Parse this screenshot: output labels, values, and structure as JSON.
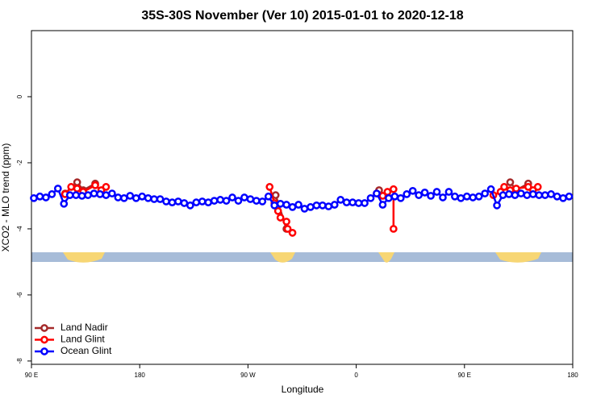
{
  "chart_data": {
    "type": "line",
    "title": "35S-30S November (Ver 10)   2015-01-01 to 2020-12-18",
    "x_label": "Longitude",
    "y_label": "XCO2 - MLO trend (ppm)",
    "xlim": [
      90,
      540
    ],
    "ylim": [
      -8.1,
      2
    ],
    "xticks": [
      {
        "value": 90,
        "label": "90 E"
      },
      180,
      {
        "value": 270,
        "label": "90 W"
      },
      {
        "value": 360,
        "label": "0"
      },
      {
        "value": 450,
        "label": "90 E"
      },
      {
        "value": 540,
        "label": "180"
      }
    ],
    "yticks": [
      -8,
      -6,
      -4,
      -2,
      0
    ],
    "legend": "bottom-left",
    "series": [
      {
        "name": "Land Nadir",
        "color": "#a52a2a",
        "x": [
          118,
          128,
          133,
          143,
          null,
          293,
          302,
          null,
          379,
          386,
          null,
          488,
          493,
          503,
          507
        ],
        "values": [
          -2.93,
          -2.59,
          -2.83,
          -2.63,
          null,
          -2.98,
          -4.0,
          null,
          -2.83,
          -3.02,
          null,
          -2.59,
          -2.83,
          -2.63,
          -2.93
        ]
      },
      {
        "name": "Land Glint",
        "color": "#ff0000",
        "x": [
          118,
          123,
          128,
          133,
          143,
          148,
          152,
          null,
          288,
          292,
          295,
          297,
          302,
          303,
          307,
          null,
          377,
          382,
          386,
          391,
          391,
          null,
          474,
          480,
          483,
          488,
          493,
          503,
          507,
          511
        ],
        "values": [
          -2.95,
          -2.73,
          -2.78,
          -2.88,
          -2.68,
          -2.83,
          -2.73,
          null,
          -2.73,
          -3.22,
          -3.46,
          -3.66,
          -3.78,
          -4.0,
          -4.12,
          null,
          -2.93,
          -3.0,
          -2.88,
          -2.8,
          -4.0,
          null,
          -2.98,
          -2.88,
          -2.73,
          -2.83,
          -2.78,
          -2.73,
          -2.83,
          -2.73
        ]
      },
      {
        "name": "Ocean Glint",
        "color": "#0000ff",
        "x": [
          92,
          97,
          102,
          107,
          112,
          117,
          122,
          127,
          132,
          137,
          142,
          147,
          152,
          157,
          162,
          167,
          172,
          177,
          182,
          187,
          192,
          197,
          202,
          207,
          212,
          217,
          222,
          227,
          232,
          237,
          242,
          247,
          252,
          257,
          262,
          267,
          272,
          277,
          282,
          287,
          292,
          297,
          302,
          307,
          312,
          317,
          322,
          327,
          332,
          337,
          342,
          347,
          352,
          357,
          362,
          367,
          372,
          377,
          382,
          387,
          392,
          397,
          402,
          407,
          412,
          417,
          422,
          427,
          432,
          437,
          442,
          447,
          452,
          457,
          462,
          467,
          472,
          477,
          482,
          487,
          492,
          497,
          502,
          507,
          512,
          517,
          522,
          527,
          532,
          537
        ],
        "values": [
          -3.07,
          -3.02,
          -3.05,
          -2.95,
          -2.78,
          -3.24,
          -2.98,
          -2.98,
          -3.0,
          -2.98,
          -2.93,
          -2.95,
          -2.98,
          -2.93,
          -3.05,
          -3.07,
          -3.0,
          -3.07,
          -3.02,
          -3.07,
          -3.1,
          -3.1,
          -3.17,
          -3.2,
          -3.17,
          -3.22,
          -3.29,
          -3.2,
          -3.17,
          -3.2,
          -3.15,
          -3.12,
          -3.15,
          -3.05,
          -3.15,
          -3.05,
          -3.1,
          -3.15,
          -3.17,
          -3.02,
          -3.29,
          -3.24,
          -3.27,
          -3.34,
          -3.27,
          -3.39,
          -3.34,
          -3.29,
          -3.29,
          -3.32,
          -3.27,
          -3.12,
          -3.2,
          -3.2,
          -3.22,
          -3.22,
          -3.07,
          -2.93,
          -3.27,
          -3.07,
          -3.02,
          -3.07,
          -2.95,
          -2.85,
          -2.98,
          -2.9,
          -3.0,
          -2.88,
          -3.05,
          -2.88,
          -3.02,
          -3.07,
          -3.02,
          -3.05,
          -3.02,
          -2.93,
          -2.8,
          -3.29,
          -2.98,
          -2.95,
          -2.98,
          -2.93,
          -2.98,
          -2.95,
          -2.98,
          -2.98,
          -2.95,
          -3.02,
          -3.07,
          -3.02
        ]
      }
    ]
  }
}
